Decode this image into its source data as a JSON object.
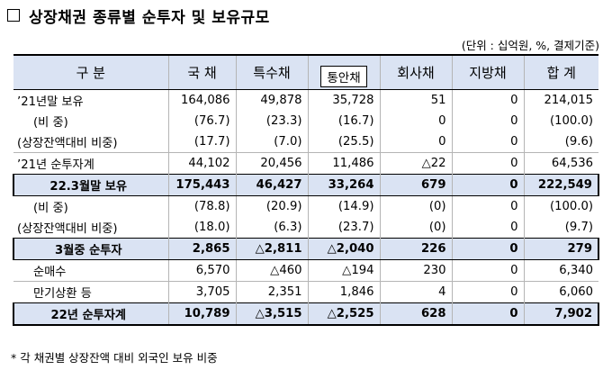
{
  "title": "상장채권 종류별 순투자 및 보유규모",
  "unit": "(단위 : 십억원, %, 결제기준)",
  "headers": [
    "구 분",
    "국 채",
    "특수채",
    "통안채",
    "회사채",
    "지방채",
    "합 계"
  ],
  "rows": [
    {
      "label": "’21년말 보유",
      "vals": [
        "164,086",
        "49,878",
        "35,728",
        "51",
        "0",
        "214,015"
      ]
    },
    {
      "label": "(비 중)",
      "vals": [
        "(76.7)",
        "(23.3)",
        "(16.7)",
        "0",
        "0",
        "(100.0)"
      ]
    },
    {
      "label": "(상장잔액대비 비중)",
      "vals": [
        "(17.7)",
        "(7.0)",
        "(25.5)",
        "0",
        "0",
        "(9.6)"
      ]
    },
    {
      "label": "’21년 순투자계",
      "vals": [
        "44,102",
        "20,456",
        "11,486",
        "△22",
        "0",
        "64,536"
      ]
    },
    {
      "label": "22.3월말 보유",
      "vals": [
        "175,443",
        "46,427",
        "33,264",
        "679",
        "0",
        "222,549"
      ]
    },
    {
      "label": "(비 중)",
      "vals": [
        "(78.8)",
        "(20.9)",
        "(14.9)",
        "(0)",
        "0",
        "(100.0)"
      ]
    },
    {
      "label": "(상장잔액대비 비중)",
      "vals": [
        "(18.0)",
        "(6.3)",
        "(23.7)",
        "(0)",
        "0",
        "(9.7)"
      ]
    },
    {
      "label": "3월중 순투자",
      "vals": [
        "2,865",
        "△2,811",
        "△2,040",
        "226",
        "0",
        "279"
      ]
    },
    {
      "label": "순매수",
      "vals": [
        "6,570",
        "△460",
        "△194",
        "230",
        "0",
        "6,340"
      ]
    },
    {
      "label": "만기상환 등",
      "vals": [
        "3,705",
        "2,351",
        "1,846",
        "4",
        "0",
        "6,060"
      ]
    },
    {
      "label": "22년 순투자계",
      "vals": [
        "10,789",
        "△3,515",
        "△2,525",
        "628",
        "0",
        "7,902"
      ]
    }
  ],
  "note": "* 각 채권별 상장잔액 대비 외국인 보유 비중"
}
